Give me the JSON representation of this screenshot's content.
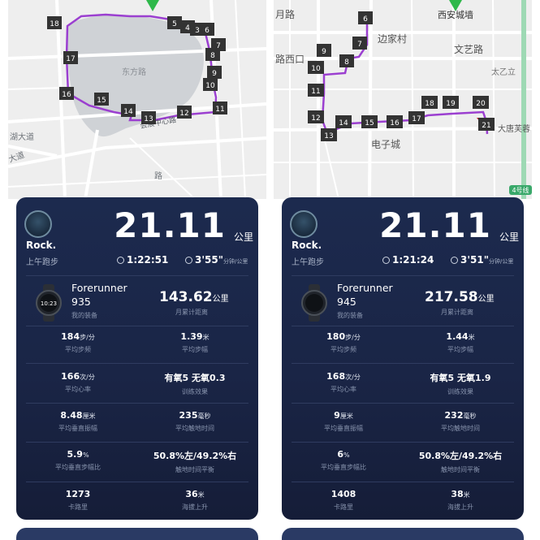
{
  "screens": [
    {
      "map": {
        "labels": [
          "湖大道",
          "大道",
          "路",
          "会展中心路",
          "东方路"
        ],
        "markers": [
          "18",
          "17",
          "16",
          "15",
          "14",
          "13",
          "12",
          "11",
          "10",
          "9",
          "8",
          "7",
          "6",
          "5",
          "4",
          "3"
        ]
      },
      "card": {
        "user": "Rock.",
        "activity": "上午跑步",
        "distance": "21.11",
        "distance_unit": "公里",
        "duration": "1:22:51",
        "pace": "3'55\"",
        "pace_unit": "分钟/公里",
        "device_name": "Forerunner",
        "device_model": "935",
        "device_label": "我的装备",
        "watch_face_time": "10:23",
        "monthly_value": "143.62",
        "monthly_unit": "公里",
        "monthly_label": "月累计距离",
        "stats": [
          {
            "value": "184",
            "unit": "步/分",
            "label": "平均步频"
          },
          {
            "value": "1.39",
            "unit": "米",
            "label": "平均步幅"
          },
          {
            "value": "166",
            "unit": "次/分",
            "label": "平均心率"
          },
          {
            "value": "有氧5 无氧0.3",
            "unit": "",
            "label": "训练效果"
          },
          {
            "value": "8.48",
            "unit": "厘米",
            "label": "平均垂直振幅"
          },
          {
            "value": "235",
            "unit": "毫秒",
            "label": "平均触地时间"
          },
          {
            "value": "5.9",
            "unit": "%",
            "label": "平均垂直步幅比"
          },
          {
            "value": "50.8%左/49.2%右",
            "unit": "",
            "label": "触地时间平衡"
          },
          {
            "value": "1273",
            "unit": "",
            "label": "卡路里"
          },
          {
            "value": "36",
            "unit": "米",
            "label": "海拔上升"
          }
        ]
      }
    },
    {
      "map": {
        "labels": [
          "月路",
          "西安城墙",
          "边家村",
          "路西口",
          "文艺路",
          "太乙立",
          "大唐芙蓉",
          "电子城",
          "4号线"
        ],
        "markers": [
          "6",
          "7",
          "8",
          "9",
          "10",
          "11",
          "12",
          "13",
          "14",
          "15",
          "16",
          "17",
          "18",
          "19",
          "20",
          "21"
        ]
      },
      "card": {
        "user": "Rock.",
        "activity": "上午跑步",
        "distance": "21.11",
        "distance_unit": "公里",
        "duration": "1:21:24",
        "pace": "3'51\"",
        "pace_unit": "分钟/公里",
        "device_name": "Forerunner",
        "device_model": "945",
        "device_label": "我的装备",
        "watch_face_time": "",
        "monthly_value": "217.58",
        "monthly_unit": "公里",
        "monthly_label": "月累计距离",
        "stats": [
          {
            "value": "180",
            "unit": "步/分",
            "label": "平均步频"
          },
          {
            "value": "1.44",
            "unit": "米",
            "label": "平均步幅"
          },
          {
            "value": "168",
            "unit": "次/分",
            "label": "平均心率"
          },
          {
            "value": "有氧5 无氧1.9",
            "unit": "",
            "label": "训练效果"
          },
          {
            "value": "9",
            "unit": "厘米",
            "label": "平均垂直振幅"
          },
          {
            "value": "232",
            "unit": "毫秒",
            "label": "平均触地时间"
          },
          {
            "value": "6",
            "unit": "%",
            "label": "平均垂直步幅比"
          },
          {
            "value": "50.8%左/49.2%右",
            "unit": "",
            "label": "触地时间平衡"
          },
          {
            "value": "1408",
            "unit": "",
            "label": "卡路里"
          },
          {
            "value": "38",
            "unit": "米",
            "label": "海拔上升"
          }
        ]
      }
    }
  ],
  "colors": {
    "route": "#9b3fd0",
    "card_bg": "#1c2a4e",
    "lake": "#cfd2d6",
    "road": "#ffffff",
    "start_flag": "#2eb84a",
    "end_flag": "#d02030"
  }
}
